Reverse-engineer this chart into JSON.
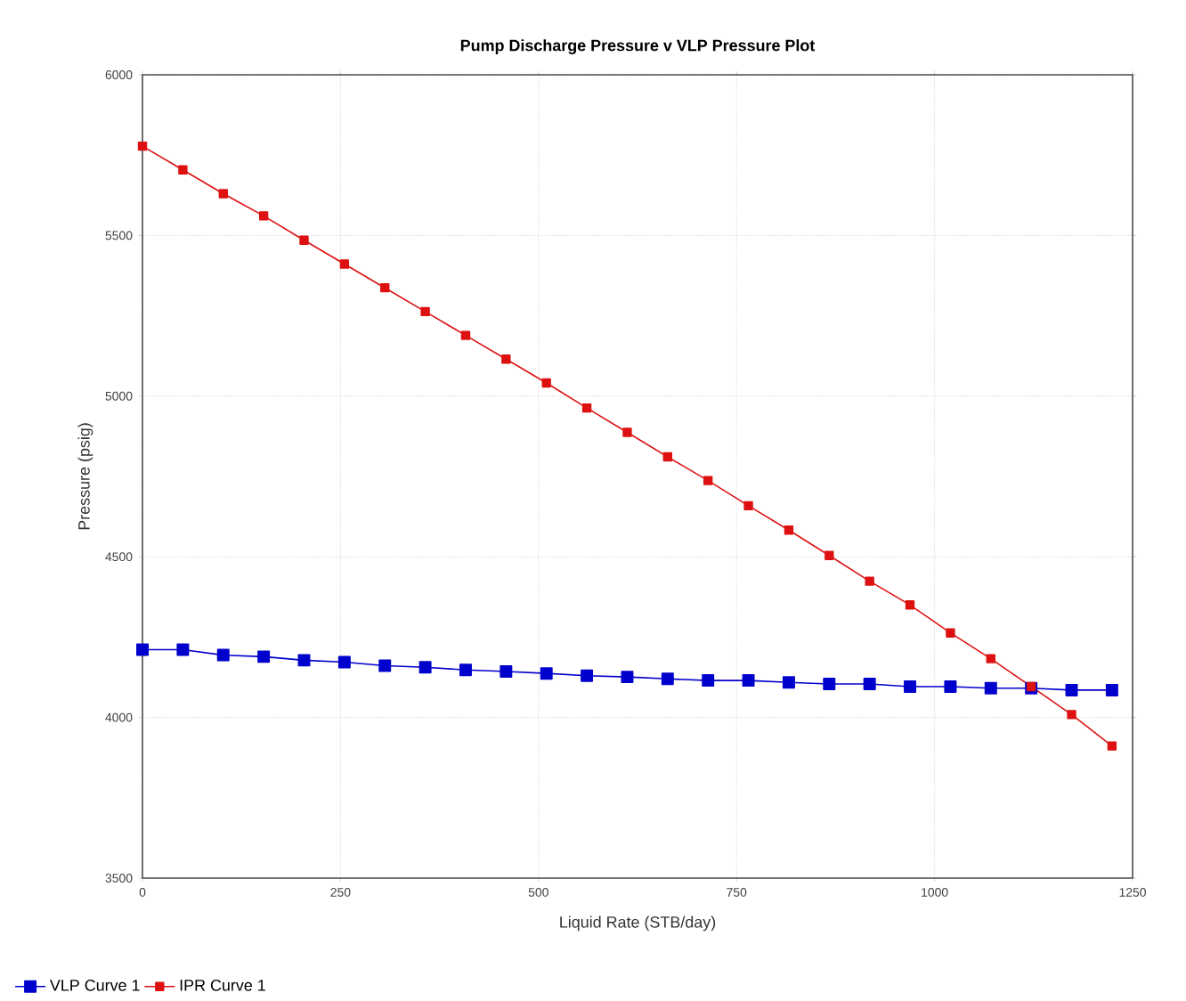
{
  "chart_data": {
    "type": "line",
    "title": "Pump Discharge Pressure v VLP Pressure Plot",
    "xlabel": "Liquid Rate  (STB/day)",
    "ylabel": "Pressure  (psig)",
    "x": [
      0,
      51,
      102,
      153,
      204,
      255,
      306,
      357,
      408,
      459,
      510,
      561,
      612,
      663,
      714,
      765,
      816,
      867,
      918,
      969,
      1020,
      1071,
      1122,
      1173,
      1224
    ],
    "series": [
      {
        "name": "VLP Curve 1",
        "color": "#0000cc",
        "values": [
          4211,
          4211,
          4194,
          4189,
          4178,
          4172,
          4161,
          4156,
          4148,
          4143,
          4137,
          4130,
          4126,
          4120,
          4115,
          4115,
          4109,
          4104,
          4104,
          4096,
          4096,
          4091,
          4091,
          4085,
          4085
        ]
      },
      {
        "name": "IPR Curve 1",
        "color": "#dd1111",
        "values": [
          5778,
          5704,
          5630,
          5561,
          5485,
          5411,
          5337,
          5263,
          5189,
          5115,
          5041,
          4963,
          4887,
          4811,
          4737,
          4659,
          4583,
          4504,
          4424,
          4350,
          4263,
          4183,
          4096,
          4009,
          3911
        ]
      }
    ],
    "xlim": [
      0,
      1250
    ],
    "xticks": [
      0,
      250,
      500,
      750,
      1000,
      1250
    ],
    "ylim": [
      3500,
      6000
    ],
    "yticks": [
      3500,
      4000,
      4500,
      5000,
      5500,
      6000
    ],
    "grid": true,
    "legend": "bottom",
    "marker": "square",
    "line_style": "solid"
  }
}
